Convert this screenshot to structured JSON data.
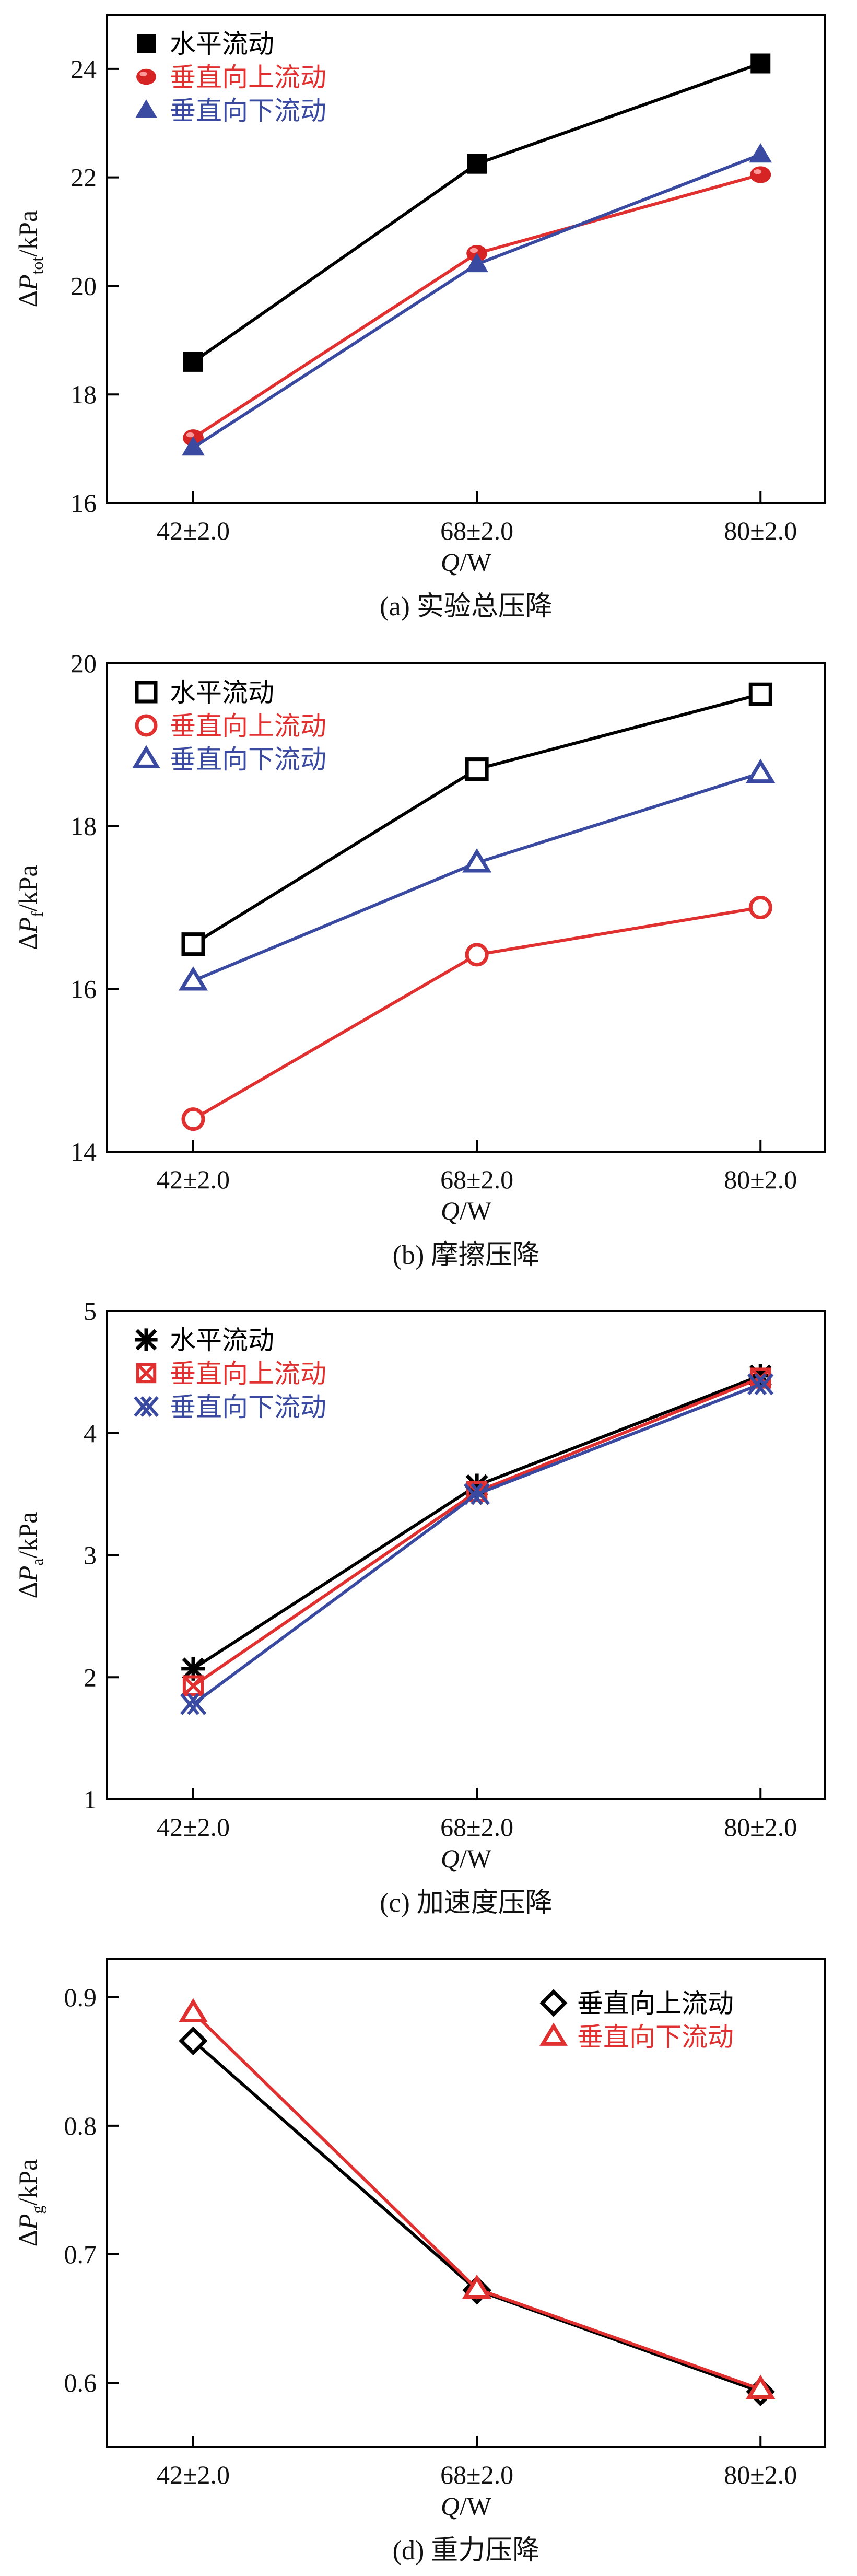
{
  "panels": [
    {
      "id": "a",
      "chart_data": {
        "type": "line",
        "categories": [
          "42±2.0",
          "68±2.0",
          "80±2.0"
        ],
        "ylim": [
          16,
          25
        ],
        "yticks": [
          16,
          18,
          20,
          22,
          24
        ],
        "xlabel": {
          "main": "Q",
          "unit": "/W"
        },
        "ylabel": {
          "delta": "Δ",
          "var": "P",
          "sub": "tot",
          "unit": "/kPa"
        },
        "caption": "(a) 实验总压降",
        "legend_position": "top-left",
        "series": [
          {
            "name": "水平流动",
            "values": [
              18.6,
              22.25,
              24.1
            ],
            "color": "#000000",
            "legend_color": "#000000",
            "marker": "square-filled"
          },
          {
            "name": "垂直向上流动",
            "values": [
              17.2,
              20.6,
              22.05
            ],
            "color": "#e03030",
            "legend_color": "#e03030",
            "marker": "sphere-red"
          },
          {
            "name": "垂直向下流动",
            "values": [
              17.02,
              20.4,
              22.42
            ],
            "color": "#3a4aa0",
            "legend_color": "#3a4aa0",
            "marker": "triangle-filled"
          }
        ]
      }
    },
    {
      "id": "b",
      "chart_data": {
        "type": "line",
        "categories": [
          "42±2.0",
          "68±2.0",
          "80±2.0"
        ],
        "ylim": [
          14,
          20
        ],
        "yticks": [
          14,
          16,
          18,
          20
        ],
        "xlabel": {
          "main": "Q",
          "unit": "/W"
        },
        "ylabel": {
          "delta": "Δ",
          "var": "P",
          "sub": "f",
          "unit": "/kPa"
        },
        "caption": "(b) 摩擦压降",
        "legend_position": "top-left",
        "series": [
          {
            "name": "水平流动",
            "values": [
              16.55,
              18.7,
              19.62
            ],
            "color": "#000000",
            "legend_color": "#000000",
            "marker": "square-open"
          },
          {
            "name": "垂直向上流动",
            "values": [
              14.4,
              16.42,
              17.0
            ],
            "color": "#e03030",
            "legend_color": "#e03030",
            "marker": "circle-open"
          },
          {
            "name": "垂直向下流动",
            "values": [
              16.1,
              17.55,
              18.65
            ],
            "color": "#3a4aa0",
            "legend_color": "#3a4aa0",
            "marker": "triangle-open"
          }
        ]
      }
    },
    {
      "id": "c",
      "chart_data": {
        "type": "line",
        "categories": [
          "42±2.0",
          "68±2.0",
          "80±2.0"
        ],
        "ylim": [
          1,
          5
        ],
        "yticks": [
          1,
          2,
          3,
          4,
          5
        ],
        "xlabel": {
          "main": "Q",
          "unit": "/W"
        },
        "ylabel": {
          "delta": "Δ",
          "var": "P",
          "sub": "a",
          "unit": "/kPa"
        },
        "caption": "(c) 加速度压降",
        "legend_position": "top-left",
        "series": [
          {
            "name": "水平流动",
            "values": [
              2.07,
              3.57,
              4.47
            ],
            "color": "#000000",
            "legend_color": "#000000",
            "marker": "asterisk"
          },
          {
            "name": "垂直向上流动",
            "values": [
              1.93,
              3.52,
              4.45
            ],
            "color": "#e03030",
            "legend_color": "#e03030",
            "marker": "boxed-x"
          },
          {
            "name": "垂直向下流动",
            "values": [
              1.78,
              3.5,
              4.4
            ],
            "color": "#3a4aa0",
            "legend_color": "#3a4aa0",
            "marker": "double-x"
          }
        ]
      }
    },
    {
      "id": "d",
      "chart_data": {
        "type": "line",
        "categories": [
          "42±2.0",
          "68±2.0",
          "80±2.0"
        ],
        "ylim": [
          0.55,
          0.93
        ],
        "yticks": [
          0.6,
          0.7,
          0.8,
          0.9
        ],
        "xlabel": {
          "main": "Q",
          "unit": "/W"
        },
        "ylabel": {
          "delta": "Δ",
          "var": "P",
          "sub": "g",
          "unit": "/kPa"
        },
        "caption": "(d) 重力压降",
        "legend_position": "top-right",
        "series": [
          {
            "name": "垂直向上流动",
            "values": [
              0.866,
              0.672,
              0.593
            ],
            "color": "#000000",
            "legend_color": "#000000",
            "marker": "diamond-open"
          },
          {
            "name": "垂直向下流动",
            "values": [
              0.888,
              0.673,
              0.595
            ],
            "color": "#e03030",
            "legend_color": "#e03030",
            "marker": "triangle-open-red"
          }
        ]
      }
    }
  ]
}
